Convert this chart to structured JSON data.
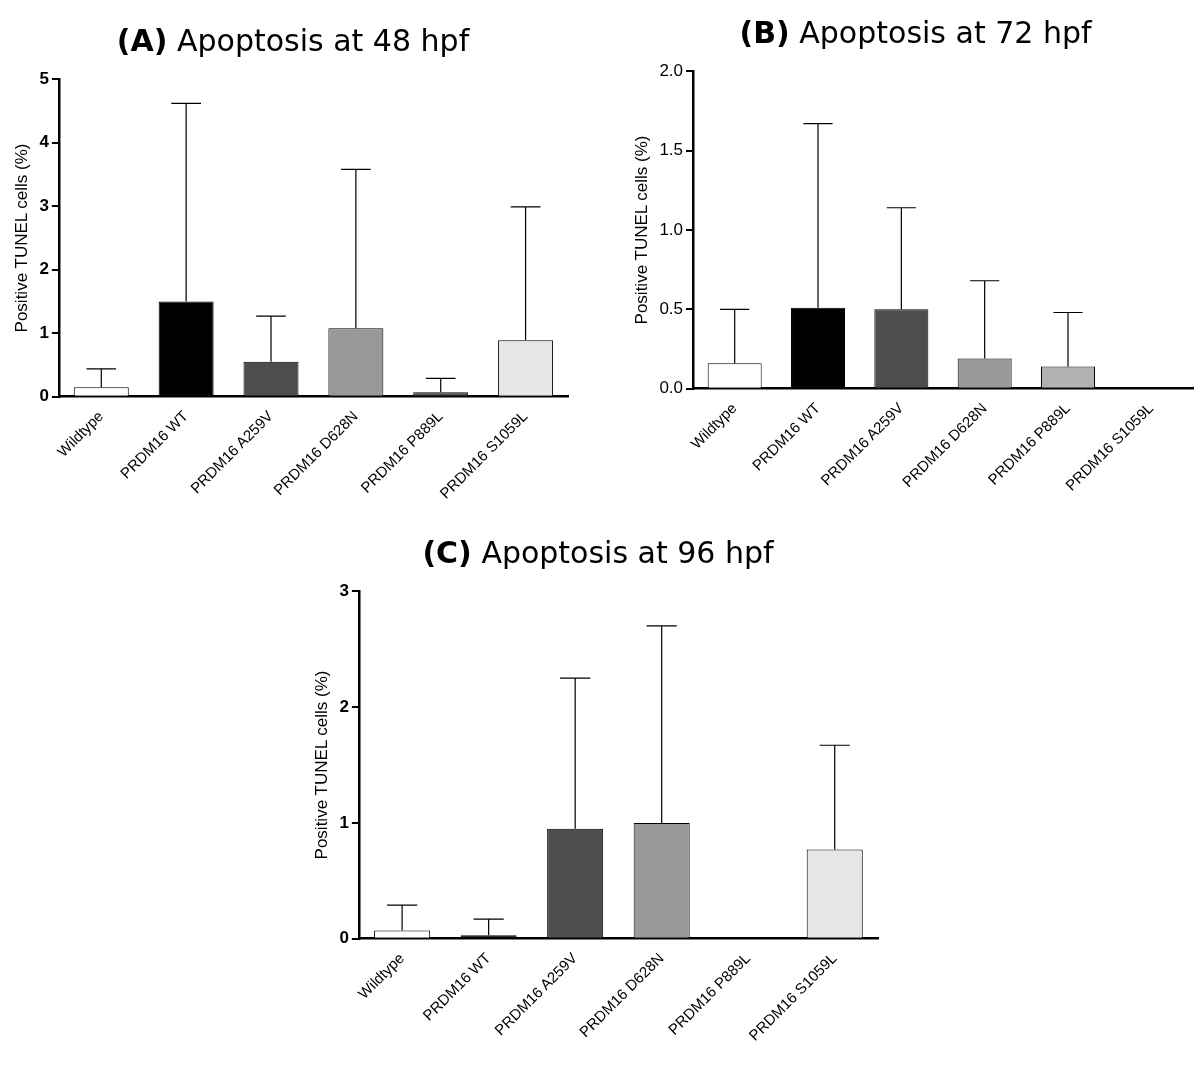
{
  "chart_data": [
    {
      "type": "bar",
      "title": "(A) Apoptosis at 48 hpf",
      "ylabel": "Positive TUNEL cells (%)",
      "categories": [
        "Wildtype",
        "PRDM16 WT",
        "PRDM16 A259V",
        "PRDM16 D628N",
        "PRDM16 P889L",
        "PRDM16 S1059L"
      ],
      "values": [
        0.15,
        1.5,
        0.55,
        1.08,
        0.07,
        0.89
      ],
      "errors": [
        [
          0.15,
          0.44
        ],
        [
          1.5,
          4.62
        ],
        [
          0.55,
          1.27
        ],
        [
          1.08,
          3.58
        ],
        [
          0.07,
          0.29
        ],
        [
          0.89,
          2.99
        ]
      ],
      "colors": [
        "#ffffff",
        "#000000",
        "#4d4d4d",
        "#999999",
        "#4d4d4d",
        "#e6e6e6"
      ],
      "ylim": [
        0,
        5
      ],
      "yticks": [
        0,
        1,
        2,
        3,
        4,
        5
      ],
      "grid": false,
      "legend": false
    },
    {
      "type": "bar",
      "title": "(B) Apoptosis at 72 hpf",
      "ylabel": "Positive TUNEL cells (%)",
      "categories": [
        "Wildtype",
        "PRDM16 WT",
        "PRDM16 A259V",
        "PRDM16 D628N",
        "PRDM16 P889L",
        "PRDM16 S1059L"
      ],
      "values": [
        0.16,
        0.51,
        0.5,
        0.19,
        0.14,
        0
      ],
      "errors": [
        [
          0.16,
          0.5
        ],
        [
          0.51,
          1.67
        ],
        [
          0.5,
          1.14
        ],
        [
          0.19,
          0.68
        ],
        [
          0.14,
          0.48
        ],
        null
      ],
      "colors": [
        "#ffffff",
        "#000000",
        "#4d4d4d",
        "#999999",
        "#b3b3b3",
        "#e6e6e6"
      ],
      "ylim": [
        0,
        2
      ],
      "yticks": [
        {
          "value": 0,
          "label": "0.0"
        },
        {
          "value": 0.5,
          "label": "0.5"
        },
        {
          "value": 1,
          "label": "1.0"
        },
        {
          "value": 1.5,
          "label": "1.5"
        },
        {
          "value": 2,
          "label": "2.0"
        }
      ],
      "grid": false,
      "legend": false
    },
    {
      "type": "bar",
      "title": "(C) Apoptosis at 96 hpf",
      "ylabel": "Positive TUNEL cells (%)",
      "categories": [
        "Wildtype",
        "PRDM16 WT",
        "PRDM16 A259V",
        "PRDM16 D628N",
        "PRDM16 P889L",
        "PRDM16 S1059L"
      ],
      "values": [
        0.07,
        0.03,
        0.95,
        1,
        0,
        0.77
      ],
      "errors": [
        [
          0.07,
          0.29
        ],
        [
          0.03,
          0.17
        ],
        [
          0.95,
          2.25
        ],
        [
          1,
          2.7
        ],
        null,
        [
          0.77,
          1.67
        ]
      ],
      "colors": [
        "#ffffff",
        "#000000",
        "#4d4d4d",
        "#999999",
        "#b3b3b3",
        "#e6e6e6"
      ],
      "ylim": [
        0,
        3
      ],
      "yticks": [
        0,
        1,
        2,
        3
      ],
      "grid": false,
      "legend": false
    }
  ]
}
